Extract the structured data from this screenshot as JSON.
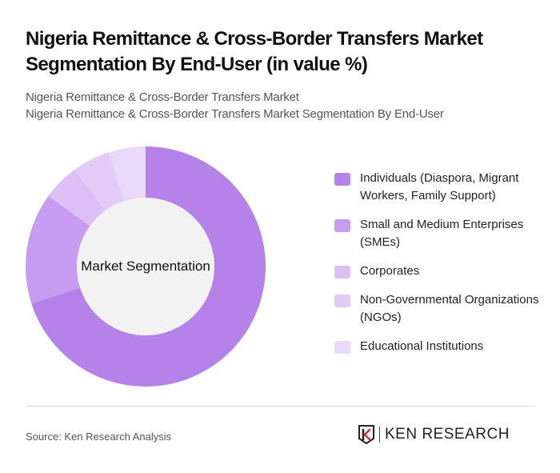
{
  "header": {
    "title": "Nigeria Remittance & Cross-Border Transfers Market Segmentation By End-User (in value %)",
    "subtitle_line1": "Nigeria Remittance & Cross-Border Transfers Market",
    "subtitle_line2": "Nigeria Remittance & Cross-Border Transfers Market Segmentation By End-User"
  },
  "chart_data": {
    "type": "pie",
    "variant": "donut",
    "title": "Nigeria Remittance & Cross-Border Transfers Market Segmentation By End-User (in value %)",
    "center_label": "Market Segmentation",
    "categories": [
      "Individuals (Diaspora, Migrant Workers, Family Support)",
      "Small and Medium Enterprises (SMEs)",
      "Corporates",
      "Non-Governmental Organizations (NGOs)",
      "Educational Institutions"
    ],
    "values": [
      70,
      15,
      5,
      5,
      5
    ],
    "colors": [
      "#b582ea",
      "#c69df0",
      "#dbbff5",
      "#e2ccf7",
      "#ead9fa"
    ],
    "legend_position": "right",
    "unit": "%"
  },
  "legend": {
    "items": [
      {
        "label": "Individuals (Diaspora, Migrant Workers, Family Support)",
        "color": "#b582ea"
      },
      {
        "label": "Small and Medium Enterprises (SMEs)",
        "color": "#c69df0"
      },
      {
        "label": "Corporates",
        "color": "#dbbff5"
      },
      {
        "label": "Non-Governmental Organizations (NGOs)",
        "color": "#e2ccf7"
      },
      {
        "label": "Educational Institutions",
        "color": "#ead9fa"
      }
    ]
  },
  "footer": {
    "source": "Source: Ken Research Analysis",
    "logo_text": "KEN RESEARCH"
  }
}
